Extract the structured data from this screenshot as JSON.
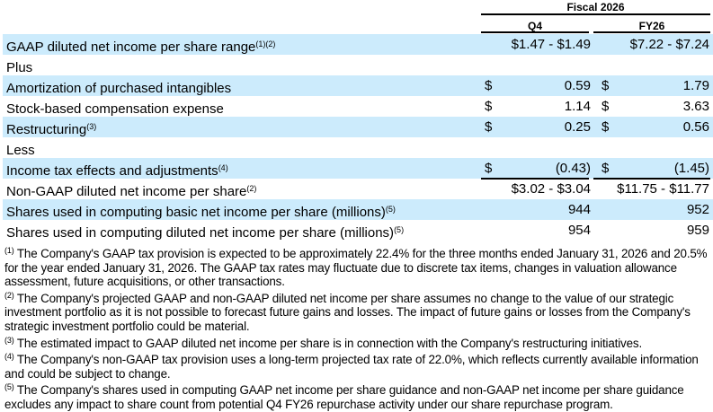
{
  "header": {
    "period": "Fiscal 2026",
    "col1": "Q4",
    "col2": "FY26"
  },
  "rows": [
    {
      "label": "GAAP diluted net income per share range",
      "sup": "(1)(2)",
      "dollar1": "",
      "q4": "$1.47 - $1.49",
      "dollar2": "",
      "fy26": "$7.22 - $7.24",
      "shaded": true
    },
    {
      "label": "Plus",
      "sup": "",
      "dollar1": "",
      "q4": "",
      "dollar2": "",
      "fy26": "",
      "shaded": false
    },
    {
      "label": "Amortization of purchased intangibles",
      "sup": "",
      "dollar1": "$",
      "q4": "0.59",
      "dollar2": "$",
      "fy26": "1.79",
      "shaded": true
    },
    {
      "label": "Stock-based compensation expense",
      "sup": "",
      "dollar1": "$",
      "q4": "1.14",
      "dollar2": "$",
      "fy26": "3.63",
      "shaded": false
    },
    {
      "label": "Restructuring",
      "sup": "(3)",
      "dollar1": "$",
      "q4": "0.25",
      "dollar2": "$",
      "fy26": "0.56",
      "shaded": true
    },
    {
      "label": "Less",
      "sup": "",
      "dollar1": "",
      "q4": "",
      "dollar2": "",
      "fy26": "",
      "shaded": false
    },
    {
      "label": "Income tax effects and adjustments",
      "sup": "(4)",
      "dollar1": "$",
      "q4": "(0.43)",
      "dollar2": "$",
      "fy26": "(1.45)",
      "shaded": true
    },
    {
      "label": "Non-GAAP diluted net income per share",
      "sup": "(2)",
      "dollar1": "",
      "q4": "$3.02 - $3.04",
      "dollar2": "",
      "fy26": "$11.75 - $11.77",
      "shaded": false
    },
    {
      "label": "Shares used in computing basic net income per share (millions)",
      "sup": "(5)",
      "dollar1": "",
      "q4": "944",
      "dollar2": "",
      "fy26": "952",
      "shaded": true
    },
    {
      "label": "Shares used in computing diluted net income per share (millions)",
      "sup": "(5)",
      "dollar1": "",
      "q4": "954",
      "dollar2": "",
      "fy26": "959",
      "shaded": false
    }
  ],
  "footnotes": [
    {
      "marker": "(1)",
      "text": "The Company's GAAP tax provision is expected to be approximately 22.4% for the three months ended January 31, 2026 and 20.5% for the year ended January 31, 2026. The GAAP tax rates may fluctuate due to discrete tax items, changes in valuation allowance assessment, future acquisitions, or other transactions."
    },
    {
      "marker": "(2)",
      "text": "The Company's projected GAAP and non-GAAP diluted net income per share assumes no change to the value of our strategic investment portfolio as it is not possible to forecast future gains and losses. The impact of future gains or losses from the Company's strategic investment portfolio could be material."
    },
    {
      "marker": "(3)",
      "text": "The estimated impact to GAAP diluted net income per share is in connection with the Company's restructuring initiatives."
    },
    {
      "marker": "(4)",
      "text": "The Company's non-GAAP tax provision uses a long-term projected tax rate of 22.0%, which reflects currently available information and could be subject to change."
    },
    {
      "marker": "(5)",
      "text": "The Company's shares used in computing GAAP net income per share guidance and non-GAAP net income per share guidance excludes any impact to share count from potential Q4 FY26 repurchase activity under our share repurchase program."
    }
  ]
}
